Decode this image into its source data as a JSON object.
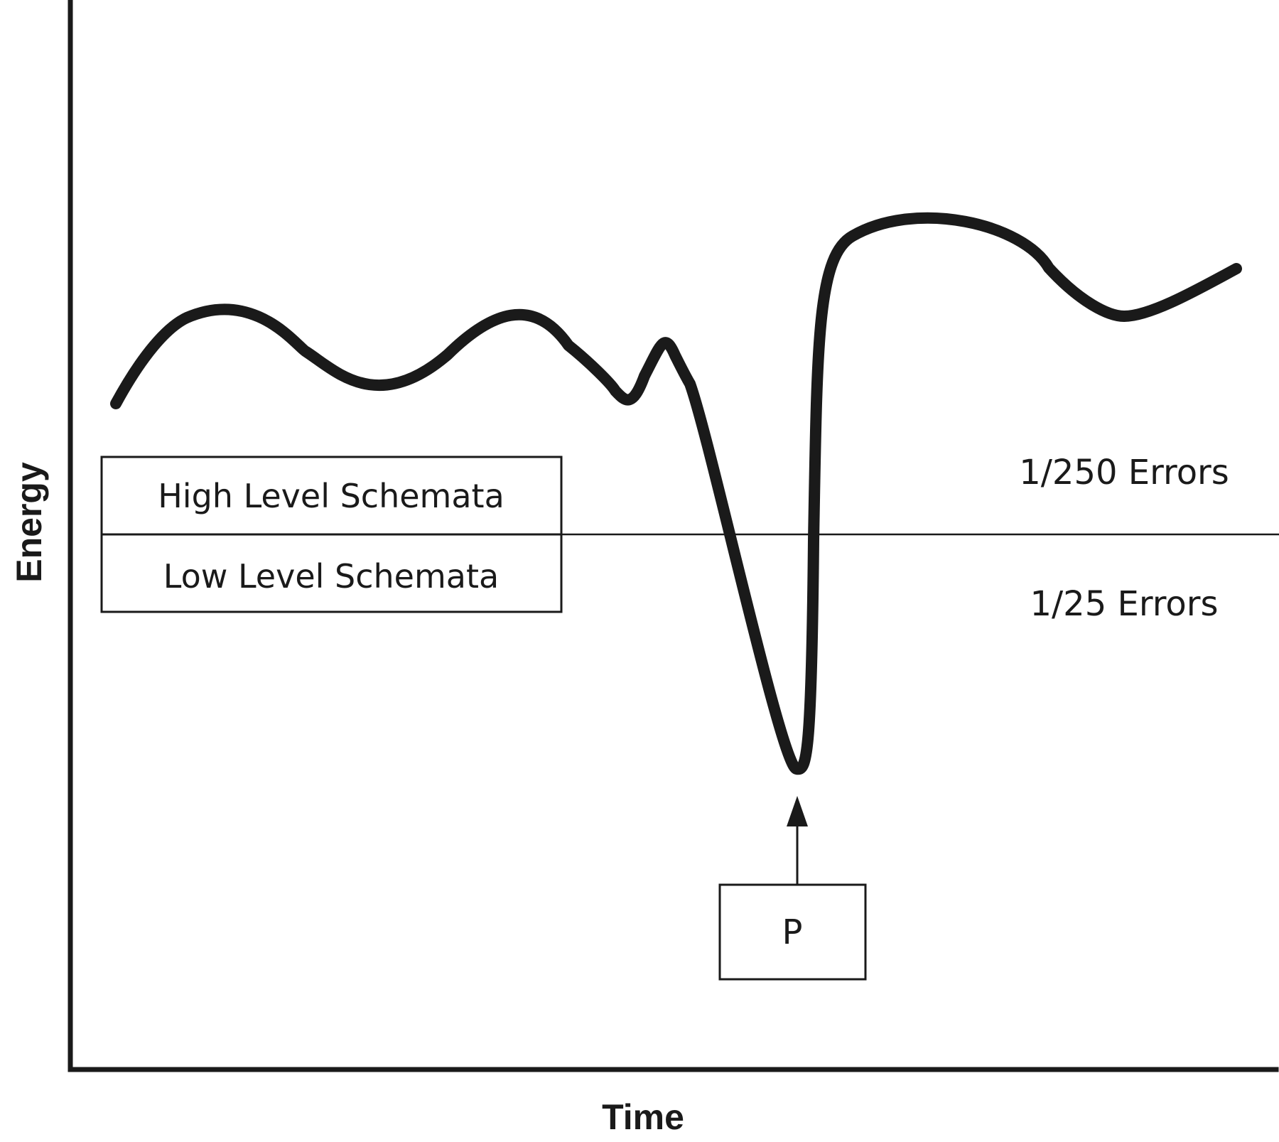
{
  "chart_data": {
    "type": "line",
    "title": "",
    "xlabel": "Time",
    "ylabel": "Energy",
    "grid": false,
    "threshold_labels": {
      "above": "1/250 Errors",
      "below": "1/25 Errors"
    },
    "schemata_box": {
      "upper": "High Level Schemata",
      "lower": "Low Level Schemata"
    },
    "marker_label": "P",
    "line_color": "#1a1a1a"
  }
}
